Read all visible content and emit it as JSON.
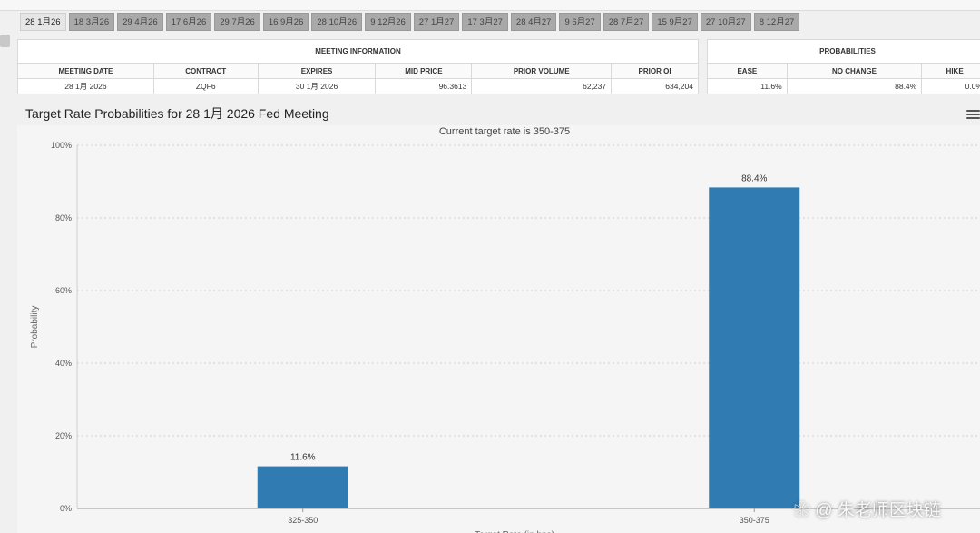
{
  "tabs": [
    "28 1月26",
    "18 3月26",
    "29 4月26",
    "17 6月26",
    "29 7月26",
    "16 9月26",
    "28 10月26",
    "9 12月26",
    "27 1月27",
    "17 3月27",
    "28 4月27",
    "9 6月27",
    "28 7月27",
    "15 9月27",
    "27 10月27",
    "8 12月27"
  ],
  "meeting_info": {
    "title": "MEETING INFORMATION",
    "headers": [
      "MEETING DATE",
      "CONTRACT",
      "EXPIRES",
      "MID PRICE",
      "PRIOR VOLUME",
      "PRIOR OI"
    ],
    "values": [
      "28 1月 2026",
      "ZQF6",
      "30 1月 2026",
      "96.3613",
      "62,237",
      "634,204"
    ]
  },
  "probabilities": {
    "title": "PROBABILITIES",
    "headers": [
      "EASE",
      "NO CHANGE",
      "HIKE"
    ],
    "values": [
      "11.6%",
      "88.4%",
      "0.0%"
    ]
  },
  "chart_title": "Target Rate Probabilities for 28 1月 2026 Fed Meeting",
  "watermark": "朱老师区块链",
  "chart_data": {
    "type": "bar",
    "subtitle": "Current target rate is 350-375",
    "ylabel": "Probability",
    "xlabel": "Target Rate (in bps)",
    "ylim": [
      0,
      100
    ],
    "yticks": [
      "0%",
      "20%",
      "40%",
      "60%",
      "80%",
      "100%"
    ],
    "categories": [
      "325-350",
      "350-375"
    ],
    "values": [
      11.6,
      88.4
    ],
    "data_labels": [
      "11.6%",
      "88.4%"
    ],
    "bar_color": "#2f7bb2"
  }
}
